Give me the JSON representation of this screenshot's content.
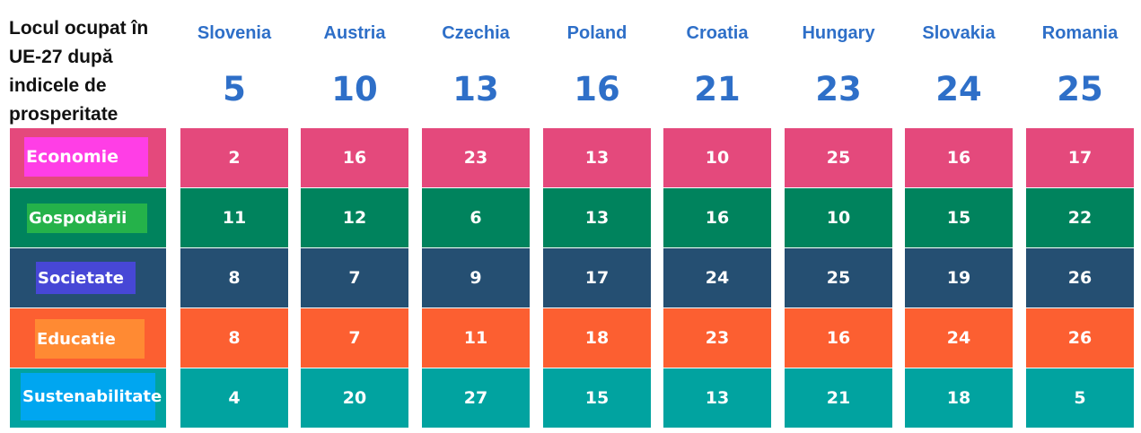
{
  "title": "Locul ocupat în UE-27 după indicele de prosperitate",
  "chart_data": {
    "type": "table",
    "title": "Locul ocupat în UE-27 după indicele de prosperitate",
    "columns": [
      "Slovenia",
      "Austria",
      "Czechia",
      "Poland",
      "Croatia",
      "Hungary",
      "Slovakia",
      "Romania"
    ],
    "overall_rank": [
      "5",
      "10",
      "13",
      "16",
      "21",
      "23",
      "24",
      "25"
    ],
    "rows": [
      {
        "label": "Economie",
        "values": [
          "2",
          "16",
          "23",
          "13",
          "10",
          "25",
          "16",
          "17"
        ],
        "color": "#e4497c",
        "label_color": "#ff3ee6"
      },
      {
        "label": "Gospodării",
        "values": [
          "11",
          "12",
          "6",
          "13",
          "16",
          "10",
          "15",
          "22"
        ],
        "color": "#00835d",
        "label_color": "#25b24a"
      },
      {
        "label": "Societate",
        "values": [
          "8",
          "7",
          "9",
          "17",
          "24",
          "25",
          "19",
          "26"
        ],
        "color": "#254f72",
        "label_color": "#4747d6"
      },
      {
        "label": "Educatie",
        "values": [
          "8",
          "7",
          "11",
          "18",
          "23",
          "16",
          "24",
          "26"
        ],
        "color": "#fc5f31",
        "label_color": "#ff8a33"
      },
      {
        "label": "Sustenabilitate",
        "values": [
          "4",
          "20",
          "27",
          "15",
          "13",
          "21",
          "18",
          "5"
        ],
        "color": "#01a3a0",
        "label_color": "#00a6f0"
      }
    ]
  }
}
